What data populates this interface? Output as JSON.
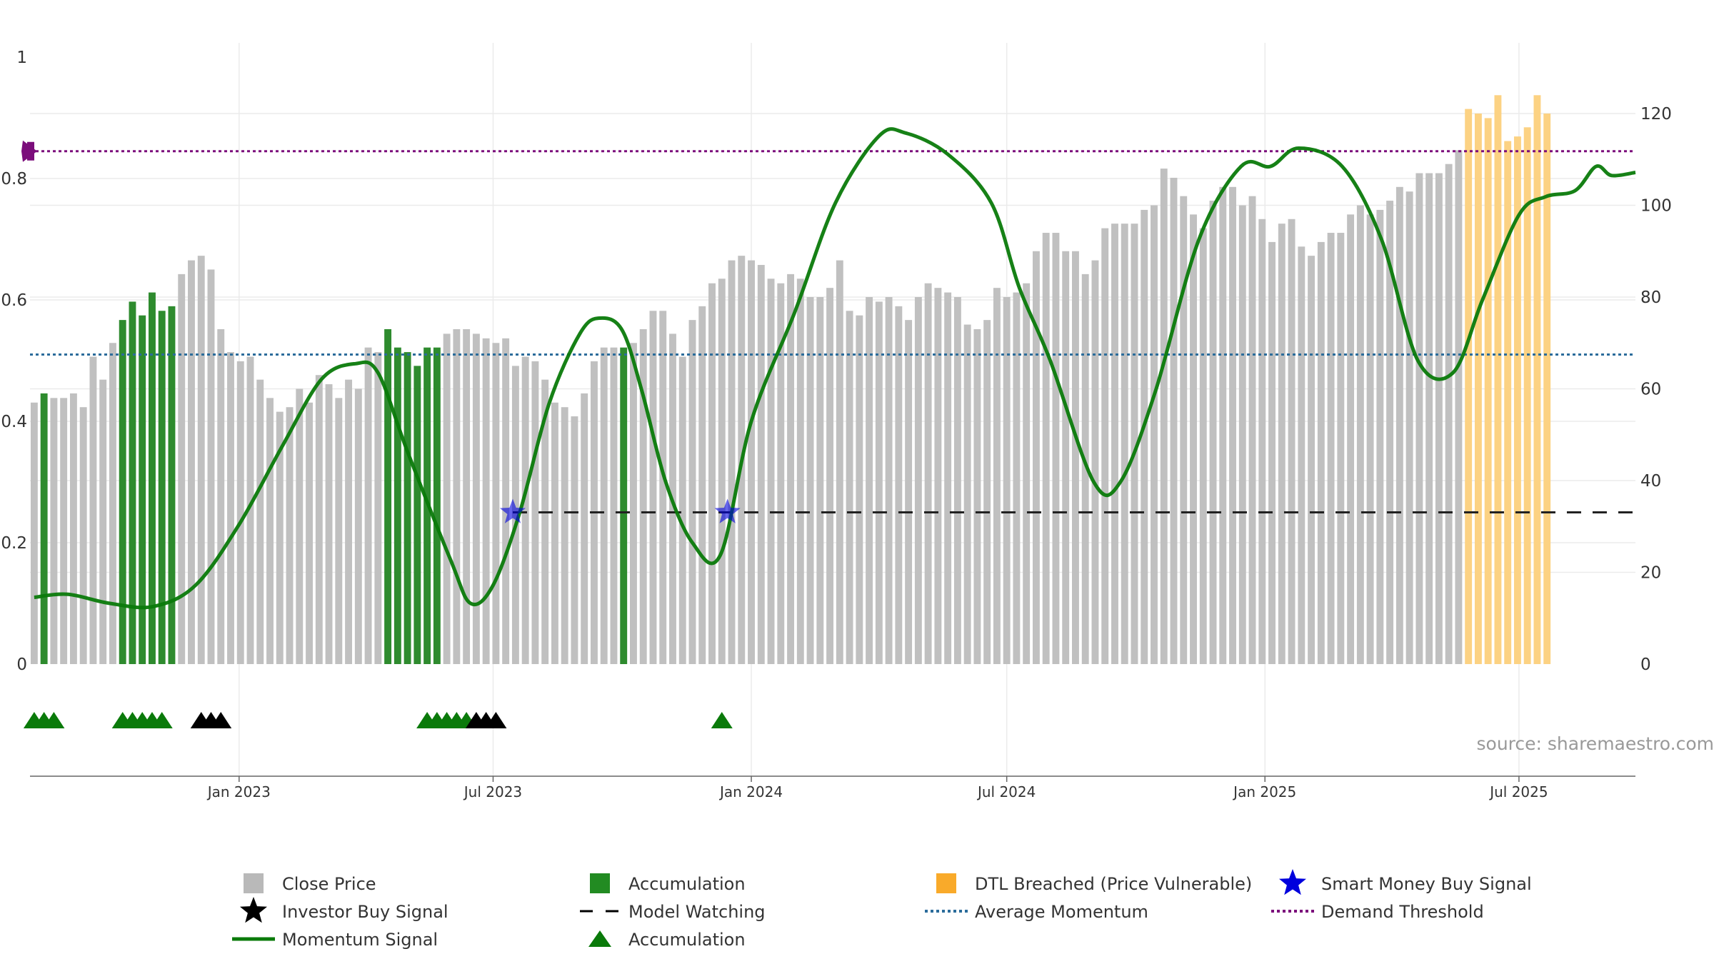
{
  "source_text": "source: sharemaestro.com",
  "chart_data": {
    "type": "bar",
    "x_axis": {
      "range": [
        "2022-08-05",
        "2025-09-22"
      ],
      "tick_labels": [
        "Jan 2023",
        "Jul 2023",
        "Jan 2024",
        "Jul 2024",
        "Jan 2025",
        "Jul 2025"
      ],
      "tick_dates": [
        "2023-01-01",
        "2023-07-01",
        "2024-01-01",
        "2024-07-01",
        "2025-01-01",
        "2025-07-01"
      ]
    },
    "y_left": {
      "range": [
        0,
        1
      ],
      "tick_labels": [
        "0",
        "0.2",
        "0.4",
        "0.6",
        "0.8",
        "1"
      ]
    },
    "y_right": {
      "range": [
        0,
        120
      ],
      "tick_labels": [
        "0",
        "20",
        "40",
        "60",
        "80",
        "100",
        "120"
      ]
    },
    "grid": true,
    "first_bar_date": "2022-08-08",
    "bar_interval_days": 7,
    "close_price": [
      57,
      59,
      58,
      58,
      59,
      56,
      67,
      62,
      70,
      75,
      79,
      76,
      81,
      77,
      78,
      85,
      88,
      89,
      86,
      73,
      68,
      66,
      67,
      62,
      58,
      55,
      56,
      60,
      57,
      63,
      61,
      58,
      62,
      60,
      69,
      68,
      73,
      69,
      68,
      65,
      69,
      69,
      72,
      73,
      73,
      72,
      71,
      70,
      71,
      65,
      67,
      66,
      62,
      57,
      56,
      54,
      59,
      66,
      69,
      69,
      69,
      70,
      73,
      77,
      77,
      72,
      67,
      75,
      78,
      83,
      84,
      88,
      89,
      88,
      87,
      84,
      83,
      85,
      84,
      80,
      80,
      82,
      88,
      77,
      76,
      80,
      79,
      80,
      78,
      75,
      80,
      83,
      82,
      81,
      80,
      74,
      73,
      75,
      82,
      80,
      81,
      83,
      90,
      94,
      94,
      90,
      90,
      85,
      88,
      95,
      96,
      96,
      96,
      99,
      100,
      108,
      106,
      102,
      98,
      95,
      101,
      104,
      104,
      100,
      102,
      97,
      92,
      96,
      97,
      91,
      89,
      92,
      94,
      94,
      98,
      100,
      98,
      99,
      101,
      104,
      103,
      107,
      107,
      107,
      109,
      112,
      121,
      120,
      119,
      124,
      114,
      115,
      117,
      124,
      120
    ],
    "close_price_marker_dates": [
      "2022-08-08",
      "2025-09-22"
    ],
    "bar_category": [
      "G",
      "A",
      "G",
      "G",
      "G",
      "G",
      "G",
      "G",
      "G",
      "A",
      "A",
      "A",
      "A",
      "A",
      "A",
      "G",
      "G",
      "G",
      "G",
      "G",
      "G",
      "G",
      "G",
      "G",
      "G",
      "G",
      "G",
      "G",
      "G",
      "G",
      "G",
      "G",
      "G",
      "G",
      "G",
      "G",
      "A",
      "A",
      "A",
      "A",
      "A",
      "A",
      "G",
      "G",
      "G",
      "G",
      "G",
      "G",
      "G",
      "G",
      "G",
      "G",
      "G",
      "G",
      "G",
      "G",
      "G",
      "G",
      "G",
      "G",
      "A",
      "G",
      "G",
      "G",
      "G",
      "G",
      "G",
      "G",
      "G",
      "G",
      "G",
      "G",
      "G",
      "G",
      "G",
      "G",
      "G",
      "G",
      "G",
      "G",
      "G",
      "G",
      "G",
      "G",
      "G",
      "G",
      "G",
      "G",
      "G",
      "G",
      "G",
      "G",
      "G",
      "G",
      "G",
      "G",
      "G",
      "G",
      "G",
      "G",
      "G",
      "G",
      "G",
      "G",
      "G",
      "G",
      "G",
      "G",
      "G",
      "G",
      "G",
      "G",
      "G",
      "G",
      "G",
      "G",
      "G",
      "G",
      "G",
      "G",
      "G",
      "G",
      "G",
      "G",
      "G",
      "G",
      "G",
      "G",
      "G",
      "G",
      "G",
      "G",
      "G",
      "G",
      "G",
      "G",
      "G",
      "G",
      "G",
      "G",
      "G",
      "G",
      "G",
      "G",
      "G",
      "G",
      "D",
      "D",
      "D",
      "D",
      "D",
      "D",
      "D",
      "D",
      "D"
    ],
    "momentum_signal": {
      "points": [
        [
          "2022-08-08",
          0.11
        ],
        [
          "2022-09-01",
          0.115
        ],
        [
          "2022-10-01",
          0.1
        ],
        [
          "2022-11-01",
          0.095
        ],
        [
          "2022-12-01",
          0.13
        ],
        [
          "2023-01-01",
          0.23
        ],
        [
          "2023-02-01",
          0.36
        ],
        [
          "2023-03-01",
          0.47
        ],
        [
          "2023-03-25",
          0.495
        ],
        [
          "2023-04-10",
          0.48
        ],
        [
          "2023-05-01",
          0.35
        ],
        [
          "2023-06-01",
          0.17
        ],
        [
          "2023-06-15",
          0.1
        ],
        [
          "2023-07-01",
          0.13
        ],
        [
          "2023-07-20",
          0.25
        ],
        [
          "2023-08-10",
          0.43
        ],
        [
          "2023-09-01",
          0.545
        ],
        [
          "2023-09-15",
          0.57
        ],
        [
          "2023-10-01",
          0.55
        ],
        [
          "2023-10-15",
          0.45
        ],
        [
          "2023-11-01",
          0.3
        ],
        [
          "2023-11-20",
          0.2
        ],
        [
          "2023-12-10",
          0.18
        ],
        [
          "2024-01-01",
          0.4
        ],
        [
          "2024-02-01",
          0.58
        ],
        [
          "2024-03-01",
          0.76
        ],
        [
          "2024-04-01",
          0.87
        ],
        [
          "2024-04-20",
          0.875
        ],
        [
          "2024-05-20",
          0.84
        ],
        [
          "2024-06-20",
          0.76
        ],
        [
          "2024-07-10",
          0.62
        ],
        [
          "2024-08-01",
          0.5
        ],
        [
          "2024-09-01",
          0.3
        ],
        [
          "2024-09-20",
          0.3
        ],
        [
          "2024-10-15",
          0.45
        ],
        [
          "2024-11-15",
          0.7
        ],
        [
          "2024-12-15",
          0.82
        ],
        [
          "2025-01-05",
          0.82
        ],
        [
          "2025-01-25",
          0.85
        ],
        [
          "2025-02-25",
          0.82
        ],
        [
          "2025-03-25",
          0.7
        ],
        [
          "2025-04-20",
          0.5
        ],
        [
          "2025-05-15",
          0.48
        ],
        [
          "2025-06-05",
          0.6
        ],
        [
          "2025-07-01",
          0.74
        ],
        [
          "2025-07-20",
          0.77
        ],
        [
          "2025-08-10",
          0.78
        ],
        [
          "2025-08-25",
          0.82
        ],
        [
          "2025-09-05",
          0.805
        ],
        [
          "2025-09-22",
          0.81
        ]
      ]
    },
    "model_watching": {
      "start": "2023-07-15",
      "end": "2025-09-22",
      "value": 0.25
    },
    "smart_money_buy_signal": [
      {
        "date": "2023-07-15",
        "value": 0.25
      },
      {
        "date": "2023-12-15",
        "value": 0.25
      }
    ],
    "average_momentum": 0.51,
    "demand_threshold": 0.845,
    "demand_threshold_marker_value": 0.845,
    "accumulation_triangles": [
      "2022-08-08",
      "2022-08-15",
      "2022-08-22",
      "2022-10-10",
      "2022-10-17",
      "2022-10-24",
      "2022-10-31",
      "2022-11-07",
      "2023-05-15",
      "2023-05-22",
      "2023-05-29",
      "2023-06-05",
      "2023-06-12",
      "2023-12-11"
    ],
    "investor_buy_signal_triangles": [
      "2022-12-05",
      "2022-12-12",
      "2022-12-19",
      "2023-06-19",
      "2023-06-26",
      "2023-07-03"
    ],
    "colors": {
      "close_price": "#c0c0c0",
      "accumulation": "#2e8b2e",
      "dtl_breached": "#fcd283",
      "momentum": "#0a7a0a",
      "average_momentum": "#2b6c9b",
      "demand_threshold": "#7b0d7b",
      "model_watching": "#222222",
      "smart_money": "#0000dd",
      "grid": "#ebebeb",
      "axis": "#666666"
    },
    "legend": {
      "position": "bottom-center",
      "items": [
        {
          "label": "Close Price",
          "icon": "square",
          "color": "#b9b9b9"
        },
        {
          "label": "Accumulation",
          "icon": "square",
          "color": "#228b22"
        },
        {
          "label": "DTL Breached (Price Vulnerable)",
          "icon": "square",
          "color": "#f9aa2a"
        },
        {
          "label": "Smart Money Buy Signal",
          "icon": "star",
          "color": "#0000dd"
        },
        {
          "label": "Investor Buy Signal",
          "icon": "star",
          "color": "#000000"
        },
        {
          "label": "Model Watching",
          "icon": "dash",
          "color": "#000000"
        },
        {
          "label": "Average Momentum",
          "icon": "dot-line",
          "color": "#2b6c9b"
        },
        {
          "label": "Demand Threshold",
          "icon": "dot-line",
          "color": "#7b0d7b"
        },
        {
          "label": "Momentum Signal",
          "icon": "line",
          "color": "#0a7a0a"
        },
        {
          "label": "Accumulation",
          "icon": "triangle",
          "color": "#0a7a0a"
        }
      ]
    }
  }
}
